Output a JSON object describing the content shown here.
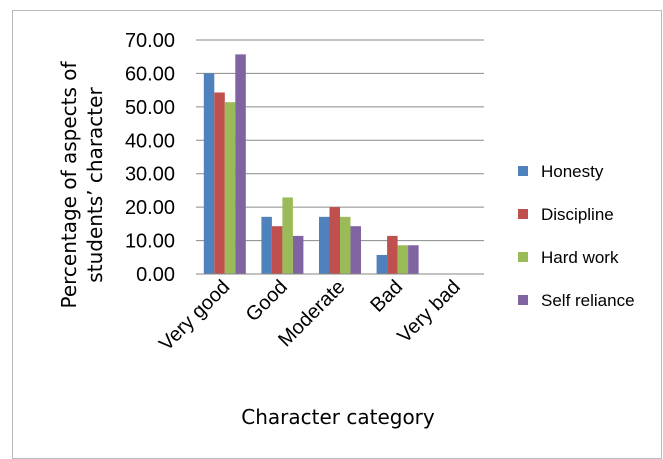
{
  "chart_data": {
    "type": "bar",
    "categories": [
      "Very good",
      "Good",
      "Moderate",
      "Bad",
      "Very bad"
    ],
    "series": [
      {
        "name": "Honesty",
        "color": "#4f81bd",
        "values": [
          60.0,
          17.1,
          17.1,
          5.7,
          0
        ]
      },
      {
        "name": "Discipline",
        "color": "#c0504d",
        "values": [
          54.3,
          14.3,
          20.0,
          11.4,
          0
        ]
      },
      {
        "name": "Hard work",
        "color": "#9bbb59",
        "values": [
          51.4,
          22.9,
          17.1,
          8.6,
          0
        ]
      },
      {
        "name": "Self reliance",
        "color": "#8064a2",
        "values": [
          65.7,
          11.4,
          14.3,
          8.6,
          0
        ]
      }
    ],
    "yticks": [
      "0.00",
      "10.00",
      "20.00",
      "30.00",
      "40.00",
      "50.00",
      "60.00",
      "70.00"
    ],
    "ylim": [
      0,
      70
    ],
    "ylabel_line1": "Percentage of aspects of",
    "ylabel_line2": "students’ character",
    "xlabel": "Character category",
    "grid": true,
    "legend_position": "right"
  }
}
